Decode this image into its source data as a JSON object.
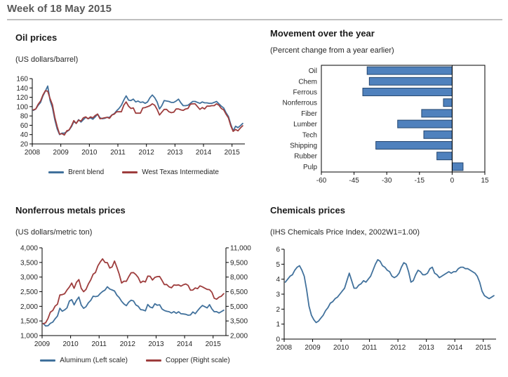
{
  "header": {
    "title": "Week of 18 May 2015"
  },
  "colors": {
    "blue": "#41719C",
    "red": "#9E3D3D",
    "bar_fill": "#4F81BD",
    "bar_edge": "#24466E",
    "axis": "#000000"
  },
  "chart_data": [
    {
      "id": "oil",
      "type": "line",
      "title": "Oil prices",
      "subtitle": "(US dollars/barrel)",
      "xlim": [
        2008,
        2015.45
      ],
      "ylim": [
        20,
        160
      ],
      "yticks": [
        20,
        40,
        60,
        80,
        100,
        120,
        140,
        160
      ],
      "xticks": [
        2008,
        2009,
        2010,
        2011,
        2012,
        2013,
        2014,
        2015
      ],
      "grid": false,
      "legend_position": "bottom",
      "series": [
        {
          "name": "Brent blend",
          "color": "blue",
          "x_start": 2008.04,
          "x_step": 0.08333,
          "y": [
            92,
            95,
            103,
            109,
            123,
            133,
            144,
            113,
            98,
            72,
            52,
            40,
            43,
            43,
            46,
            50,
            57,
            68,
            64,
            72,
            67,
            72,
            77,
            74,
            76,
            73,
            78,
            84,
            76,
            74,
            75,
            77,
            77,
            82,
            85,
            91,
            96,
            103,
            114,
            123,
            114,
            113,
            116,
            110,
            112,
            109,
            110,
            107,
            110,
            119,
            125,
            119,
            110,
            95,
            102,
            113,
            112,
            111,
            109,
            109,
            112,
            116,
            108,
            102,
            102,
            103,
            107,
            111,
            111,
            109,
            107,
            110,
            108,
            108,
            107,
            107,
            109,
            111,
            106,
            101,
            97,
            87,
            79,
            62,
            48,
            58,
            55,
            59,
            64
          ]
        },
        {
          "name": "West Texas Intermediate",
          "color": "red",
          "x_start": 2008.04,
          "x_step": 0.08333,
          "y": [
            93,
            95,
            105,
            112,
            125,
            134,
            133,
            117,
            104,
            77,
            57,
            41,
            42,
            39,
            48,
            50,
            59,
            70,
            64,
            71,
            69,
            76,
            78,
            74,
            78,
            76,
            81,
            84,
            74,
            75,
            76,
            77,
            75,
            82,
            84,
            89,
            89,
            89,
            103,
            110,
            101,
            96,
            97,
            86,
            86,
            86,
            97,
            98,
            100,
            102,
            106,
            103,
            94,
            82,
            88,
            94,
            94,
            89,
            87,
            88,
            95,
            95,
            93,
            92,
            95,
            96,
            105,
            106,
            106,
            100,
            94,
            98,
            95,
            101,
            101,
            102,
            102,
            106,
            103,
            96,
            93,
            84,
            76,
            59,
            47,
            51,
            48,
            54,
            59
          ]
        }
      ]
    },
    {
      "id": "movement",
      "type": "bar",
      "title": "Movement over the year",
      "subtitle": "(Percent change from a year earlier)",
      "categories": [
        "Oil",
        "Chem",
        "Ferrous",
        "Nonferrous",
        "Fiber",
        "Lumber",
        "Tech",
        "Shipping",
        "Rubber",
        "Pulp"
      ],
      "values": [
        -39,
        -38,
        -41,
        -4,
        -14,
        -25,
        -13,
        -35,
        -7,
        5
      ],
      "xlim": [
        -60,
        15
      ],
      "xticks": [
        -60,
        -45,
        -30,
        -15,
        0,
        15
      ],
      "grid": false
    },
    {
      "id": "nonferrous",
      "type": "line",
      "title": "Nonferrous metals prices",
      "subtitle": "(US dollars/metric ton)",
      "xlim": [
        2009,
        2015.45
      ],
      "ylim": [
        1000,
        4000
      ],
      "ylim_right": [
        2000,
        11000
      ],
      "yticks": [
        1000,
        1500,
        2000,
        2500,
        3000,
        3500,
        4000
      ],
      "yticks_right": [
        2000,
        3500,
        5000,
        6500,
        8000,
        9500,
        11000
      ],
      "xticks": [
        2009,
        2010,
        2011,
        2012,
        2013,
        2014,
        2015
      ],
      "grid": false,
      "legend_position": "bottom",
      "series": [
        {
          "name": "Aluminum (Left scale)",
          "color": "blue",
          "axis": "left",
          "x_start": 2009.04,
          "x_step": 0.08333,
          "y": [
            1413,
            1330,
            1336,
            1421,
            1460,
            1574,
            1668,
            1933,
            1833,
            1879,
            1949,
            2180,
            2230,
            2049,
            2205,
            2317,
            2041,
            1931,
            1988,
            2118,
            2202,
            2347,
            2332,
            2350,
            2440,
            2508,
            2555,
            2667,
            2592,
            2559,
            2525,
            2379,
            2298,
            2171,
            2080,
            2022,
            2142,
            2210,
            2184,
            2049,
            2002,
            1889,
            1876,
            1845,
            2064,
            1974,
            1949,
            2087,
            2037,
            2054,
            1909,
            1856,
            1831,
            1815,
            1770,
            1818,
            1761,
            1815,
            1746,
            1739,
            1727,
            1695,
            1705,
            1810,
            1750,
            1850,
            1948,
            2030,
            1990,
            1946,
            2055,
            1909,
            1816,
            1818,
            1774,
            1818,
            1870
          ]
        },
        {
          "name": "Copper (Right scale)",
          "color": "red",
          "axis": "right",
          "x_start": 2009.04,
          "x_step": 0.08333,
          "y": [
            3220,
            3314,
            3750,
            4407,
            4569,
            5014,
            5216,
            6165,
            6196,
            6288,
            6676,
            6982,
            7386,
            6848,
            7463,
            7745,
            6838,
            6499,
            6735,
            7284,
            7709,
            8292,
            8470,
            9147,
            9555,
            9868,
            9503,
            9483,
            8927,
            9045,
            9650,
            9001,
            8300,
            7394,
            7581,
            7565,
            8040,
            8441,
            8457,
            8260,
            7956,
            7420,
            7584,
            7500,
            8095,
            8082,
            7697,
            7966,
            8047,
            8060,
            7660,
            7230,
            7240,
            7000,
            6900,
            7190,
            7160,
            7200,
            7070,
            7210,
            7290,
            7150,
            6650,
            6670,
            6890,
            6810,
            7100,
            7000,
            6870,
            6740,
            6710,
            6440,
            5830,
            5730,
            5940,
            6040,
            6300
          ]
        }
      ]
    },
    {
      "id": "chemicals",
      "type": "line",
      "title": "Chemicals prices",
      "subtitle": "(IHS Chemicals Price Index, 2002W1=1.00)",
      "xlim": [
        2008,
        2015.45
      ],
      "ylim": [
        0,
        6
      ],
      "yticks": [
        0,
        1,
        2,
        3,
        4,
        5,
        6
      ],
      "xticks": [
        2008,
        2009,
        2010,
        2011,
        2012,
        2013,
        2014,
        2015
      ],
      "grid": false,
      "series": [
        {
          "name": "IHS Chemicals Price Index",
          "color": "blue",
          "x_start": 2008.04,
          "x_step": 0.08333,
          "y": [
            3.8,
            4.0,
            4.2,
            4.3,
            4.6,
            4.8,
            4.9,
            4.6,
            4.2,
            3.3,
            2.2,
            1.6,
            1.3,
            1.1,
            1.2,
            1.4,
            1.6,
            1.9,
            2.1,
            2.4,
            2.5,
            2.7,
            2.8,
            3.0,
            3.2,
            3.4,
            3.9,
            4.4,
            3.9,
            3.4,
            3.4,
            3.6,
            3.7,
            3.9,
            3.8,
            4.0,
            4.2,
            4.6,
            5.0,
            5.3,
            5.2,
            4.9,
            4.8,
            4.6,
            4.5,
            4.2,
            4.1,
            4.2,
            4.4,
            4.8,
            5.1,
            5.0,
            4.5,
            3.8,
            3.9,
            4.3,
            4.6,
            4.5,
            4.3,
            4.3,
            4.4,
            4.7,
            4.8,
            4.4,
            4.3,
            4.1,
            4.2,
            4.3,
            4.4,
            4.5,
            4.4,
            4.5,
            4.5,
            4.7,
            4.8,
            4.8,
            4.7,
            4.7,
            4.6,
            4.5,
            4.4,
            4.2,
            3.8,
            3.2,
            2.9,
            2.8,
            2.7,
            2.8,
            2.9
          ]
        }
      ]
    }
  ]
}
